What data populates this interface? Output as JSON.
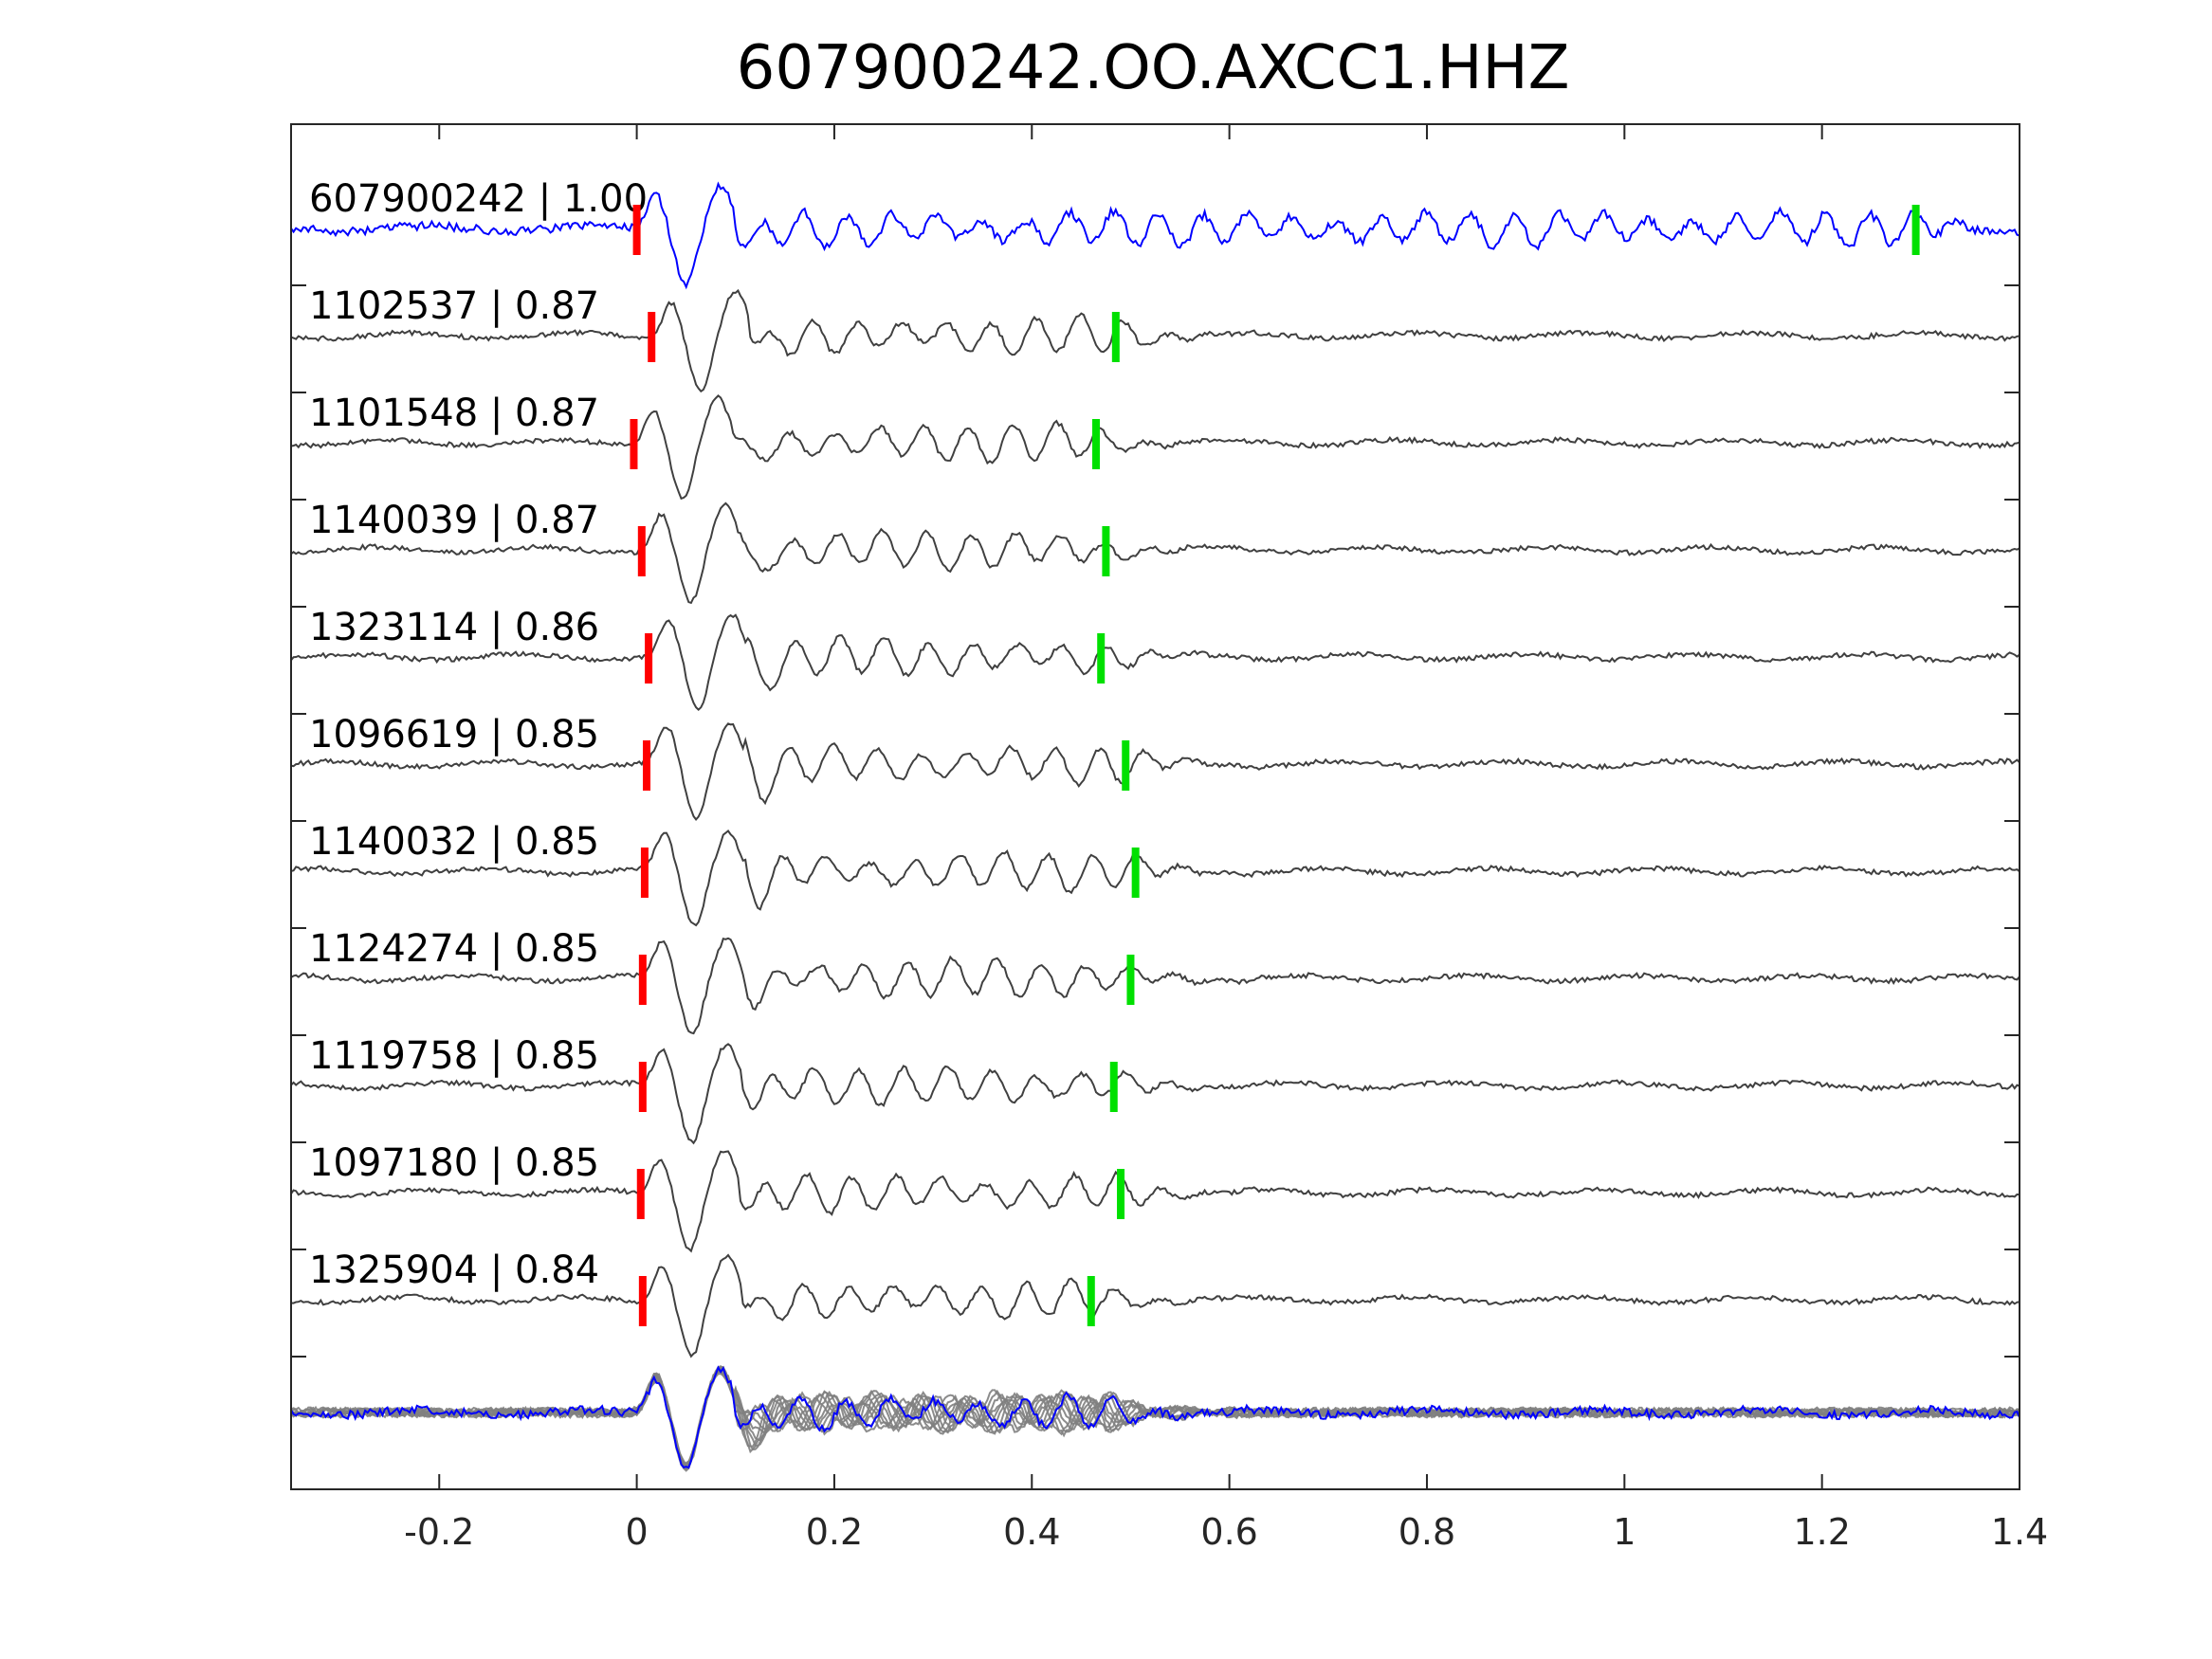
{
  "chart_data": {
    "type": "line",
    "title": "607900242.OO.AXCC1.HHZ",
    "xlabel": "",
    "ylabel": "",
    "xlim": [
      -0.35,
      1.4
    ],
    "xticks": [
      -0.2,
      0,
      0.2,
      0.4,
      0.6,
      0.8,
      1,
      1.2,
      1.4
    ],
    "xtick_labels": [
      "-0.2",
      "0",
      "0.2",
      "0.4",
      "0.6",
      "0.8",
      "1",
      "1.2",
      "1.4"
    ],
    "grid": false,
    "colors": {
      "template": "#0000ff",
      "matches": "#404040",
      "stack_matches": "#7f7f7f",
      "p_pick": "#ff0000",
      "s_pick": "#00e000",
      "axes": "#262626"
    },
    "series": [
      {
        "name": "607900242",
        "cc": "1.00",
        "label": "607900242 | 1.00",
        "p_pick": 0.0,
        "s_pick": 1.295,
        "template": true
      },
      {
        "name": "1102537",
        "cc": "0.87",
        "label": "1102537 | 0.87",
        "p_pick": 0.015,
        "s_pick": 0.485
      },
      {
        "name": "1101548",
        "cc": "0.87",
        "label": "1101548 | 0.87",
        "p_pick": -0.003,
        "s_pick": 0.465
      },
      {
        "name": "1140039",
        "cc": "0.87",
        "label": "1140039 | 0.87",
        "p_pick": 0.005,
        "s_pick": 0.475
      },
      {
        "name": "1323114",
        "cc": "0.86",
        "label": "1323114 | 0.86",
        "p_pick": 0.012,
        "s_pick": 0.47
      },
      {
        "name": "1096619",
        "cc": "0.85",
        "label": "1096619 | 0.85",
        "p_pick": 0.01,
        "s_pick": 0.495
      },
      {
        "name": "1140032",
        "cc": "0.85",
        "label": "1140032 | 0.85",
        "p_pick": 0.008,
        "s_pick": 0.505
      },
      {
        "name": "1124274",
        "cc": "0.85",
        "label": "1124274 | 0.85",
        "p_pick": 0.006,
        "s_pick": 0.5
      },
      {
        "name": "1119758",
        "cc": "0.85",
        "label": "1119758 | 0.85",
        "p_pick": 0.006,
        "s_pick": 0.483
      },
      {
        "name": "1097180",
        "cc": "0.85",
        "label": "1097180 | 0.85",
        "p_pick": 0.004,
        "s_pick": 0.49
      },
      {
        "name": "1325904",
        "cc": "0.84",
        "label": "1325904 | 0.84",
        "p_pick": 0.006,
        "s_pick": 0.46
      }
    ],
    "stack": {
      "description_visible": false
    }
  }
}
